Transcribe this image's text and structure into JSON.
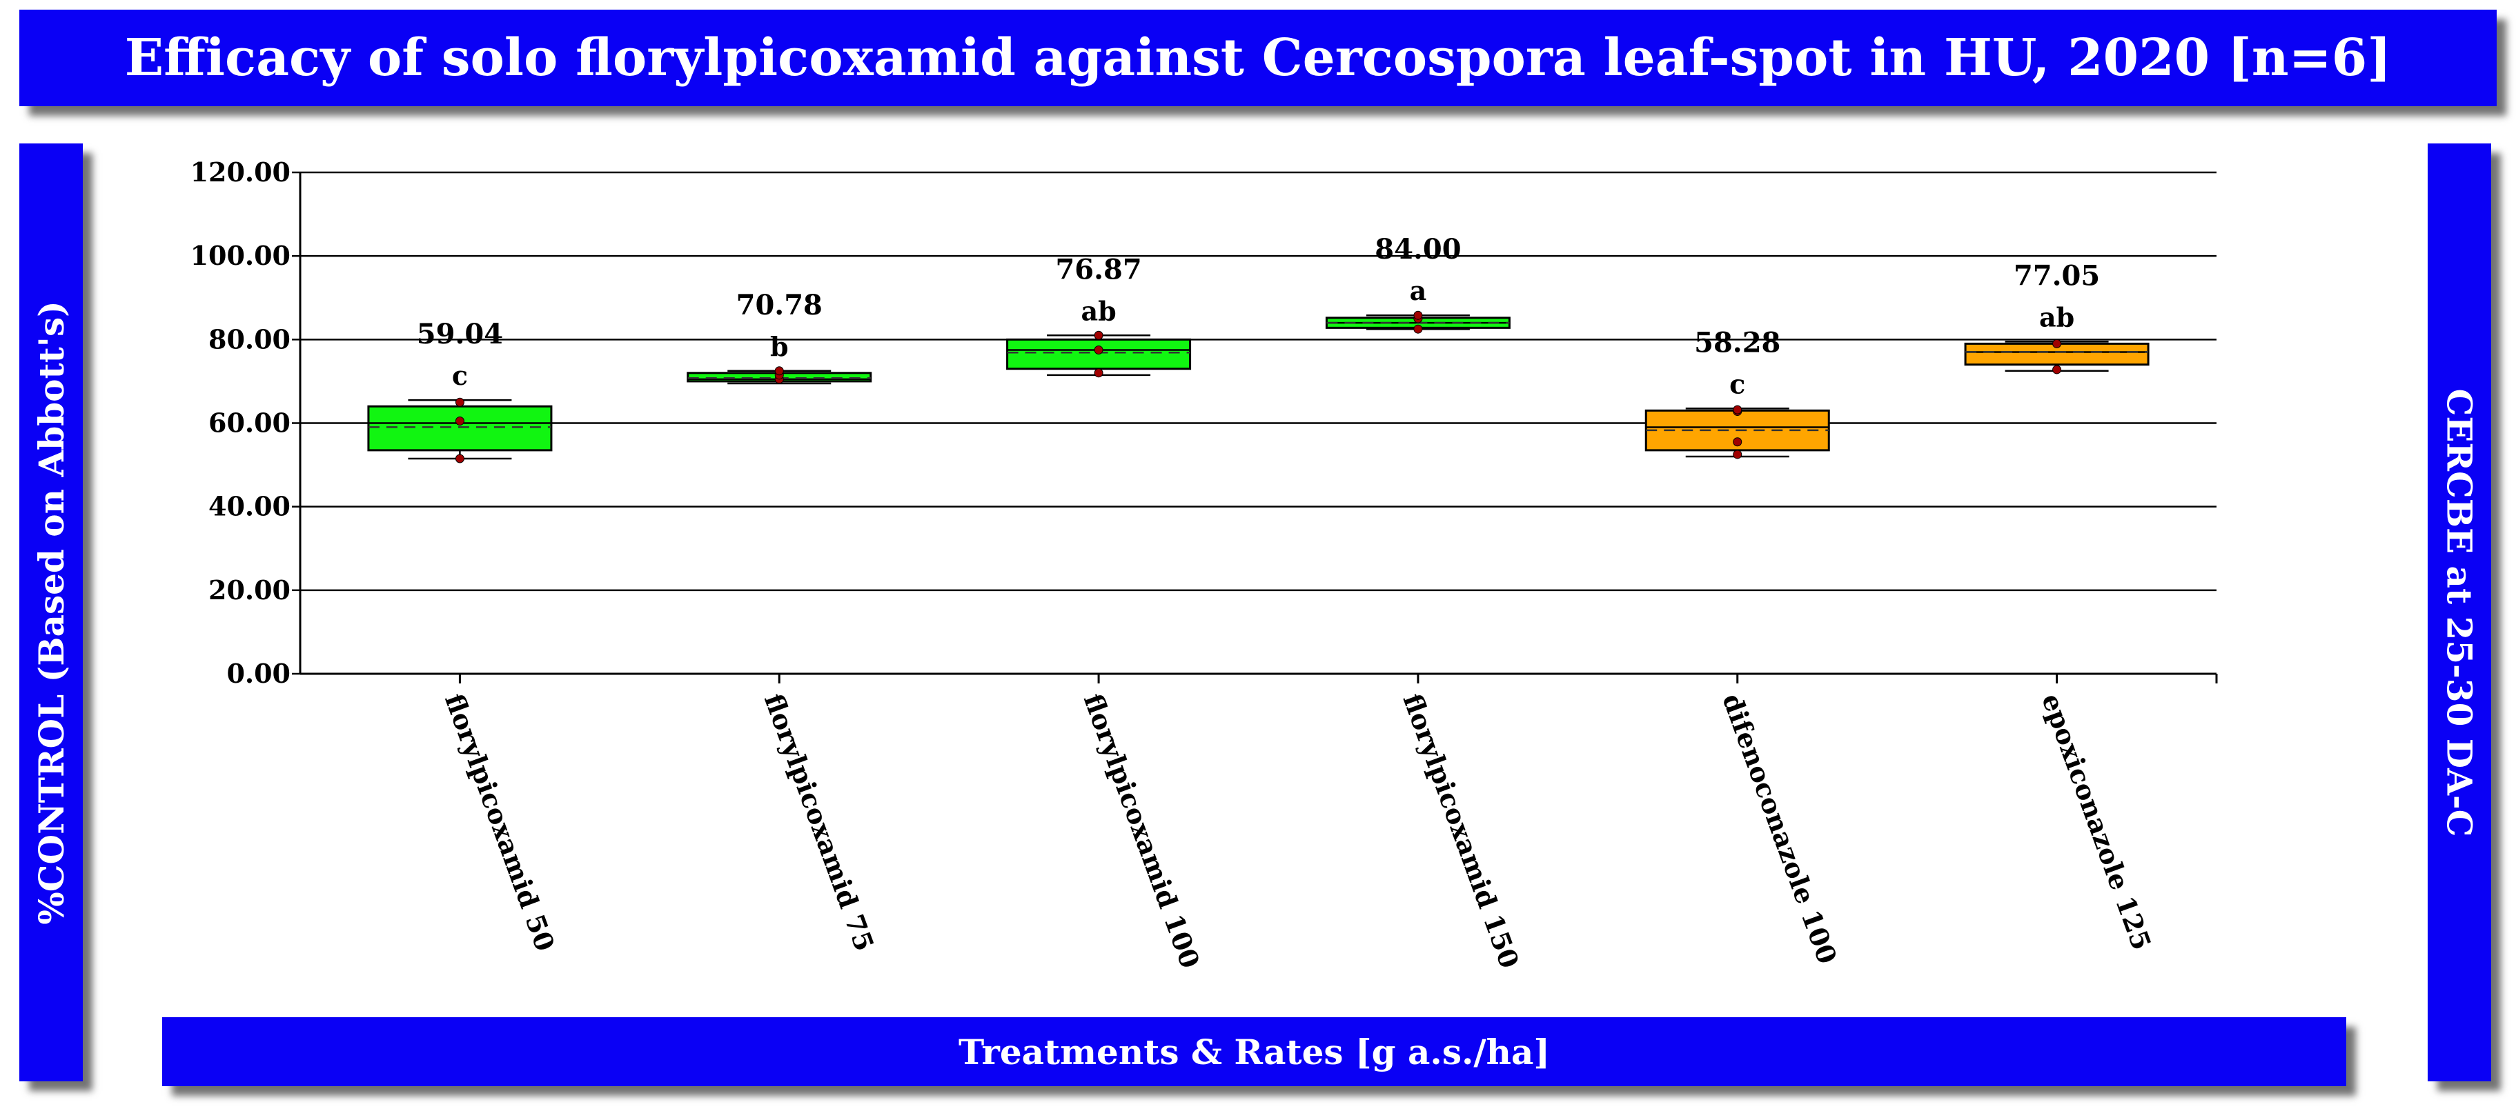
{
  "colors": {
    "banner": "#0a00f5",
    "banner_text": "#ffffff",
    "green_box": "#11f511",
    "orange_box": "#ffa500",
    "dot": "#a00000"
  },
  "chart_data": {
    "type": "box",
    "title": "Efficacy of solo florylpicoxamid against Cercospora leaf-spot in HU, 2020 [n=6]",
    "ylabel": "%CONTROL (Based on Abbott's)",
    "xlabel": "Treatments & Rates [g a.s./ha]",
    "right_label": "CERCBE at 25-30 DA-C",
    "ylim": [
      0,
      120
    ],
    "yticks": [
      "0.00",
      "20.00",
      "40.00",
      "60.00",
      "80.00",
      "100.00",
      "120.00"
    ],
    "grid": true,
    "categories": [
      "florylpicoxamid 50",
      "florylpicoxamid 75",
      "florylpicoxamid 100",
      "florylpicoxamid 150",
      "difenoconazole 100",
      "epoxiconazole 125"
    ],
    "boxes": [
      {
        "color": "green",
        "min": 51.5,
        "q1": 53.5,
        "median": 60.0,
        "mean": 59.04,
        "q3": 64.0,
        "max": 65.5,
        "points": [
          51.5,
          60.5,
          65.0
        ],
        "mean_label": "59.04",
        "letter": "c"
      },
      {
        "color": "green",
        "min": 69.5,
        "q1": 70.0,
        "median": 70.5,
        "mean": 70.78,
        "q3": 72.0,
        "max": 72.5,
        "points": [
          70.5,
          71.5,
          72.5
        ],
        "mean_label": "70.78",
        "letter": "b"
      },
      {
        "color": "green",
        "min": 71.5,
        "q1": 73.0,
        "median": 77.5,
        "mean": 76.87,
        "q3": 80.0,
        "max": 81.0,
        "points": [
          72.0,
          77.5,
          81.0
        ],
        "mean_label": "76.87",
        "letter": "ab"
      },
      {
        "color": "green",
        "min": 82.5,
        "q1": 82.8,
        "median": 84.0,
        "mean": 84.0,
        "q3": 85.2,
        "max": 85.8,
        "points": [
          82.5,
          85.0,
          85.8
        ],
        "mean_label": "84.00",
        "letter": "a"
      },
      {
        "color": "orange",
        "min": 52.0,
        "q1": 53.5,
        "median": 59.0,
        "mean": 58.28,
        "q3": 63.0,
        "max": 63.5,
        "points": [
          52.5,
          55.5,
          62.8,
          63.2
        ],
        "mean_label": "58.28",
        "letter": "c"
      },
      {
        "color": "orange",
        "min": 72.5,
        "q1": 74.0,
        "median": 77.0,
        "mean": 77.05,
        "q3": 79.0,
        "max": 79.5,
        "points": [
          72.8,
          79.0
        ],
        "mean_label": "77.05",
        "letter": "ab"
      }
    ]
  }
}
